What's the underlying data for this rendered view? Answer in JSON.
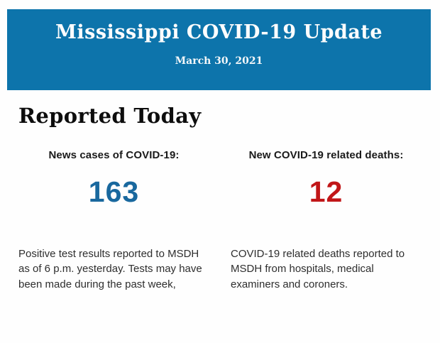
{
  "banner": {
    "title": "Mississippi COVID-19 Update",
    "date": "March 30, 2021",
    "background_color": "#0d74ab",
    "text_color": "#ffffff"
  },
  "section": {
    "heading": "Reported Today"
  },
  "stats": [
    {
      "label": "News cases of COVID-19:",
      "value": "163",
      "value_color": "#19689e",
      "description": "Positive test results reported to MSDH as of 6 p.m. yesterday. Tests may have been made during the past week,"
    },
    {
      "label": "New COVID-19 related deaths:",
      "value": "12",
      "value_color": "#c11618",
      "description": "COVID-19 related deaths reported to MSDH from hospitals, medical examiners and coroners."
    }
  ]
}
